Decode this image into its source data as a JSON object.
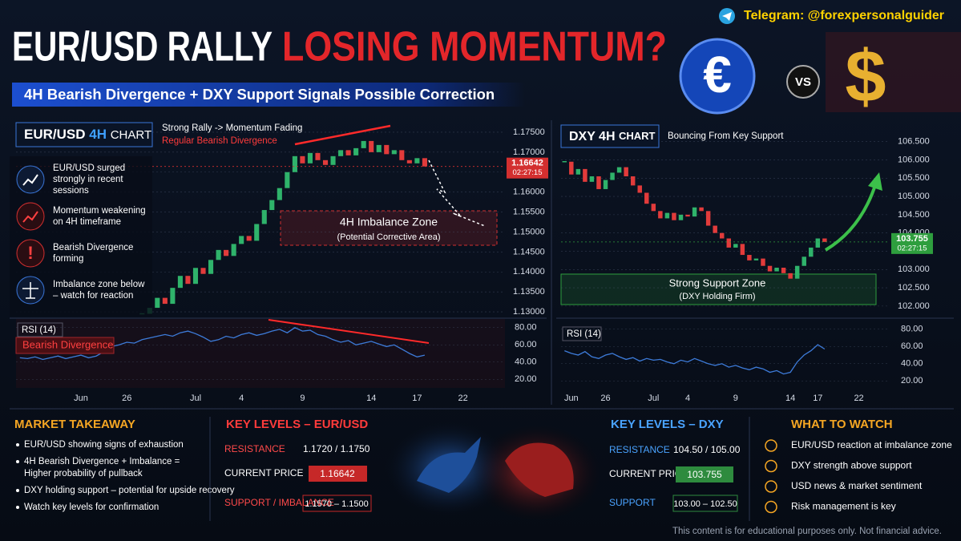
{
  "header": {
    "title_white": "EUR/USD RALLY",
    "title_red": "LOSING MOMENTUM?",
    "subtitle": "4H Bearish Divergence + DXY Support Signals Possible Correction",
    "telegram": "Telegram: @forexpersonalguider",
    "vs": "VS"
  },
  "eur_panel": {
    "badge_pair": "EUR/USD",
    "badge_tf": "4H",
    "badge_word": "CHART",
    "note_1": "Strong Rally -> Momentum Fading",
    "note_2": "Regular Bearish Divergence",
    "zone_title": "4H Imbalance Zone",
    "zone_sub": "(Potential Corrective Area)",
    "rsi_label": "RSI (14)",
    "rsi_note": "Bearish Divergence",
    "points": [
      [
        "EUR/USD surged",
        "strongly in recent",
        "sessions"
      ],
      [
        "Momentum weakening",
        "on 4H timeframe"
      ],
      [
        "Bearish Divergence",
        "forming"
      ],
      [
        "Imbalance zone below",
        "– watch for reaction"
      ]
    ]
  },
  "dxy_panel": {
    "badge_main": "DXY 4H",
    "badge_word": "CHART",
    "note": "Bouncing From Key Support",
    "zone_title": "Strong Support Zone",
    "zone_sub": "(DXY Holding Firm)",
    "rsi_label": "RSI (14)"
  },
  "chart_data": [
    {
      "type": "candlestick",
      "up_color": "#2fb36b",
      "down_color": "#e23b3b",
      "current_color": "#d32f2f",
      "current_price": 1.16642,
      "current_time": "02:27:15",
      "values": [
        null,
        null,
        null,
        null,
        null,
        null,
        null,
        null,
        null,
        null,
        null,
        null,
        null,
        null,
        null,
        null,
        1.1295,
        1.131,
        1.1335,
        1.132,
        1.136,
        1.139,
        1.137,
        1.141,
        1.1395,
        1.143,
        1.1455,
        1.144,
        1.147,
        1.149,
        1.1478,
        1.152,
        1.1555,
        1.158,
        1.161,
        1.165,
        1.169,
        1.1672,
        1.1698,
        1.168,
        1.1668,
        1.169,
        1.1705,
        1.1692,
        1.171,
        1.1728,
        1.17,
        1.1718,
        1.1695,
        1.1705,
        1.168,
        1.1672,
        1.1685,
        1.16642,
        null,
        null,
        null,
        null,
        null,
        null,
        null,
        null,
        null,
        null
      ],
      "ylim": [
        1.128,
        1.177
      ],
      "yticks": [
        {
          "value": 1.13,
          "label": "1.13000"
        },
        {
          "value": 1.135,
          "label": "1.13500"
        },
        {
          "value": 1.14,
          "label": "1.14000"
        },
        {
          "value": 1.145,
          "label": "1.14500"
        },
        {
          "value": 1.15,
          "label": "1.15000"
        },
        {
          "value": 1.155,
          "label": "1.15500"
        },
        {
          "value": 1.16,
          "label": "1.16000"
        },
        {
          "value": 1.165,
          "label": "1.16500"
        },
        {
          "value": 1.17,
          "label": "1.17000"
        },
        {
          "value": 1.175,
          "label": "1.17500"
        }
      ]
    },
    {
      "type": "line",
      "color": "#3d7bd9",
      "categories": [
        null,
        null,
        null,
        null,
        null,
        null,
        null,
        null,
        "Jun",
        null,
        null,
        null,
        null,
        null,
        "26",
        null,
        null,
        null,
        null,
        null,
        null,
        null,
        null,
        "Jul",
        null,
        null,
        null,
        null,
        null,
        "4",
        null,
        null,
        null,
        null,
        null,
        null,
        null,
        "9",
        null,
        null,
        null,
        null,
        null,
        null,
        null,
        null,
        "14",
        null,
        null,
        null,
        null,
        null,
        "17",
        null,
        null,
        null,
        null,
        null,
        "22",
        null,
        null,
        null,
        null,
        null
      ],
      "values": [
        45,
        44,
        46,
        43,
        45,
        47,
        44,
        46,
        48,
        45,
        47,
        52,
        58,
        60,
        63,
        62,
        66,
        68,
        70,
        72,
        70,
        74,
        76,
        73,
        69,
        64,
        66,
        70,
        68,
        72,
        74,
        71,
        73,
        76,
        78,
        74,
        80,
        76,
        77,
        72,
        70,
        66,
        63,
        65,
        60,
        62,
        64,
        61,
        58,
        60,
        55,
        50,
        46,
        48,
        null,
        null,
        null,
        null,
        null,
        null,
        null,
        null,
        null,
        null
      ],
      "ylim": [
        10,
        90
      ],
      "yticks": [
        {
          "value": 20,
          "label": "20.00"
        },
        {
          "value": 40,
          "label": "40.00"
        },
        {
          "value": 60,
          "label": "60.00"
        },
        {
          "value": 80,
          "label": "80.00"
        }
      ]
    },
    {
      "type": "candlestick",
      "up_color": "#2fb36b",
      "down_color": "#e23b3b",
      "current_color": "#2e9e3e",
      "current_price": 103.755,
      "current_time": "02:27:15",
      "values": [
        105.95,
        105.6,
        105.75,
        105.4,
        105.55,
        105.2,
        105.45,
        105.65,
        105.8,
        105.55,
        105.3,
        105.1,
        104.8,
        104.6,
        104.4,
        104.55,
        104.35,
        104.5,
        104.45,
        104.7,
        104.6,
        104.2,
        104.0,
        103.85,
        103.6,
        103.7,
        103.4,
        103.25,
        103.3,
        103.1,
        102.95,
        103.05,
        102.9,
        102.75,
        103.1,
        103.35,
        103.6,
        103.85,
        103.755,
        null,
        null,
        null,
        null,
        null,
        null,
        null,
        null,
        null
      ],
      "ylim": [
        101.8,
        106.8
      ],
      "yticks": [
        {
          "value": 102,
          "label": "102.000"
        },
        {
          "value": 102.5,
          "label": "102.500"
        },
        {
          "value": 103,
          "label": "103.000"
        },
        {
          "value": 103.5,
          "label": "103.500"
        },
        {
          "value": 104,
          "label": "104.000"
        },
        {
          "value": 104.5,
          "label": "104.500"
        },
        {
          "value": 105,
          "label": "105.000"
        },
        {
          "value": 105.5,
          "label": "105.500"
        },
        {
          "value": 106,
          "label": "106.000"
        },
        {
          "value": 106.5,
          "label": "106.500"
        }
      ]
    },
    {
      "type": "line",
      "color": "#3d7bd9",
      "categories": [
        null,
        "Jun",
        null,
        null,
        null,
        null,
        "26",
        null,
        null,
        null,
        null,
        null,
        null,
        "Jul",
        null,
        null,
        null,
        null,
        "4",
        null,
        null,
        null,
        null,
        null,
        null,
        "9",
        null,
        null,
        null,
        null,
        null,
        null,
        null,
        "14",
        null,
        null,
        null,
        "17",
        null,
        null,
        null,
        null,
        null,
        "22",
        null,
        null,
        null,
        null
      ],
      "values": [
        55,
        52,
        50,
        54,
        48,
        46,
        50,
        52,
        48,
        45,
        47,
        43,
        46,
        44,
        45,
        42,
        40,
        44,
        42,
        46,
        43,
        40,
        38,
        40,
        36,
        38,
        35,
        33,
        36,
        34,
        30,
        32,
        28,
        30,
        42,
        50,
        55,
        62,
        57,
        null,
        null,
        null,
        null,
        null,
        null,
        null,
        null,
        null
      ],
      "ylim": [
        10,
        90
      ],
      "yticks": [
        {
          "value": 20,
          "label": "20.00"
        },
        {
          "value": 40,
          "label": "40.00"
        },
        {
          "value": 60,
          "label": "60.00"
        },
        {
          "value": 80,
          "label": "80.00"
        }
      ]
    }
  ],
  "footer": {
    "takeaway_title": "MARKET TAKEAWAY",
    "takeaway": [
      [
        "EUR/USD showing signs of exhaustion"
      ],
      [
        "4H Bearish Divergence + Imbalance =",
        "Higher probability of pullback"
      ],
      [
        "DXY holding support – potential for upside recovery"
      ],
      [
        "Watch key levels for confirmation"
      ]
    ],
    "eur_title": "KEY LEVELS – EUR/USD",
    "eur_res_label": "RESISTANCE",
    "eur_res": "1.1720 / 1.1750",
    "eur_cur_label": "CURRENT PRICE",
    "eur_sup_label": "SUPPORT / IMBALANCE",
    "eur_sup": "1.1570 – 1.1500",
    "dxy_title": "KEY LEVELS – DXY",
    "dxy_res_label": "RESISTANCE",
    "dxy_res": "104.50 / 105.00",
    "dxy_cur_label": "CURRENT PRICE",
    "dxy_sup_label": "SUPPORT",
    "dxy_sup": "103.00 – 102.50",
    "watch_title": "WHAT TO WATCH",
    "watch": [
      "EUR/USD reaction at imbalance zone",
      "DXY strength above support",
      "USD news & market sentiment",
      "Risk management is key"
    ],
    "disclaimer": "This content is for educational purposes only. Not financial advice."
  }
}
